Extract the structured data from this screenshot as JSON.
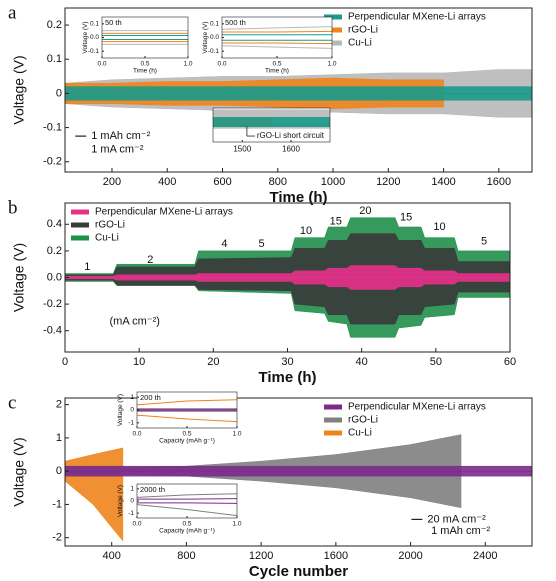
{
  "chart_data": [
    {
      "type": "band",
      "label": "a",
      "xlabel": "Time (h)",
      "ylabel": "Voltage (V)",
      "xlim": [
        30,
        1720
      ],
      "ylim": [
        -0.23,
        0.25
      ],
      "xticks": [
        200,
        400,
        600,
        800,
        1000,
        1200,
        1400,
        1600
      ],
      "yticks": [
        0.2,
        0.1,
        0,
        -0.1,
        -0.2
      ],
      "legend": "upper right",
      "x": [
        30,
        200,
        400,
        600,
        800,
        1000,
        1200,
        1400,
        1600,
        1720
      ],
      "series": [
        {
          "name": "Perpendicular MXene-Li arrays",
          "color": "#1a9a8a",
          "values": [
            0.02,
            0.02,
            0.02,
            0.02,
            0.02,
            0.02,
            0.02,
            0.02,
            0.02,
            0.02
          ],
          "lower": [
            -0.02,
            -0.02,
            -0.02,
            -0.02,
            -0.02,
            -0.02,
            -0.02,
            -0.02,
            -0.02,
            -0.02
          ]
        },
        {
          "name": "rGO-Li",
          "color": "#f0841c",
          "values": [
            0.03,
            0.03,
            0.035,
            0.035,
            0.04,
            0.045,
            0.04,
            0.04,
            null,
            null
          ],
          "lower": [
            -0.03,
            -0.03,
            -0.035,
            -0.035,
            -0.04,
            -0.045,
            -0.04,
            -0.04,
            null,
            null
          ]
        },
        {
          "name": "Cu-Li",
          "color": "#b8b8b8",
          "values": [
            0.03,
            0.04,
            0.045,
            0.05,
            0.05,
            0.055,
            0.06,
            0.06,
            0.07,
            0.07
          ],
          "lower": [
            -0.03,
            -0.04,
            -0.045,
            -0.05,
            -0.05,
            -0.055,
            -0.06,
            -0.06,
            -0.07,
            -0.07
          ]
        }
      ],
      "annotations": [
        {
          "text": "1 mAh cm⁻²",
          "x": 125,
          "y": -0.125
        },
        {
          "text": "1 mA cm⁻²",
          "x": 125,
          "y": -0.165
        }
      ]
    },
    {
      "type": "line",
      "title": "50 th",
      "xlabel": "Time (h)",
      "ylabel": "Voltage (V)",
      "xlim": [
        0,
        1
      ],
      "ylim": [
        -0.15,
        0.15
      ],
      "xticks": [
        {
          "value": 0,
          "label": "0.0"
        },
        0.5,
        {
          "value": 1,
          "label": "1.0"
        }
      ],
      "yticks": [
        0.1,
        {
          "value": 0,
          "label": "0.0"
        },
        -0.1
      ],
      "x": [
        0,
        0.5,
        1
      ],
      "series": [
        {
          "color": "#b8b8b8",
          "values": [
            0.05,
            0.05,
            0.05
          ]
        },
        {
          "color": "#b8b8b8",
          "values": [
            -0.05,
            -0.05,
            -0.05
          ]
        },
        {
          "color": "#f0841c",
          "values": [
            0.03,
            0.03,
            0.03
          ]
        },
        {
          "color": "#f0841c",
          "values": [
            -0.03,
            -0.03,
            -0.03
          ]
        },
        {
          "color": "#1a9a8a",
          "values": [
            0.015,
            0.015,
            0.015
          ]
        },
        {
          "color": "#1a9a8a",
          "values": [
            -0.015,
            -0.015,
            -0.015
          ]
        }
      ]
    },
    {
      "type": "line",
      "title": "500 th",
      "xlabel": "Time (h)",
      "ylabel": "Voltage (V)",
      "xlim": [
        0,
        1
      ],
      "ylim": [
        -0.15,
        0.15
      ],
      "xticks": [
        {
          "value": 0,
          "label": "0.0"
        },
        0.5,
        {
          "value": 1,
          "label": "1.0"
        }
      ],
      "yticks": [
        0.1,
        {
          "value": 0,
          "label": "0.0"
        },
        -0.1
      ],
      "x": [
        0,
        0.5,
        1
      ],
      "series": [
        {
          "color": "#b8b8b8",
          "values": [
            0.06,
            0.07,
            0.08
          ]
        },
        {
          "color": "#b8b8b8",
          "values": [
            -0.06,
            -0.07,
            -0.08
          ]
        },
        {
          "color": "#f0841c",
          "values": [
            0.04,
            0.04,
            0.045
          ]
        },
        {
          "color": "#f0841c",
          "values": [
            -0.04,
            -0.04,
            -0.045
          ]
        },
        {
          "color": "#1a9a8a",
          "values": [
            0.02,
            0.02,
            0.02
          ]
        },
        {
          "color": "#1a9a8a",
          "values": [
            -0.02,
            -0.02,
            -0.02
          ]
        }
      ]
    },
    {
      "type": "band",
      "xlim": [
        1440,
        1680
      ],
      "ylim": [
        -0.1,
        0.1
      ],
      "xticks": [
        1500,
        1600
      ],
      "yticks": [],
      "x": [
        1440,
        1500,
        1560,
        1600,
        1680
      ],
      "series": [
        {
          "color": "#1a9a8a",
          "values": [
            0.045,
            0.045,
            0.045,
            0.045,
            0.045
          ],
          "lower": [
            -0.01,
            -0.01,
            -0.01,
            -0.01,
            -0.01
          ]
        },
        {
          "color": "#f0841c",
          "values": [
            0.035,
            0.035,
            0.035,
            null,
            null
          ],
          "lower": [
            -0.01,
            -0.01,
            -0.01,
            null,
            null
          ]
        },
        {
          "color": "#b8b8b8",
          "values": [
            0.09,
            0.09,
            0.09,
            0.09,
            0.09
          ],
          "lower": [
            -0.02,
            -0.02,
            -0.02,
            -0.02,
            -0.02
          ]
        }
      ],
      "annotations": [
        {
          "text": "rGO-Li short circuit",
          "x": 1530,
          "y": -0.065
        }
      ]
    },
    {
      "type": "band",
      "label": "b",
      "xlabel": "Time (h)",
      "ylabel": "Voltage (V)",
      "xlim": [
        0,
        60
      ],
      "ylim": [
        -0.56,
        0.56
      ],
      "xticks": [
        0,
        10,
        20,
        30,
        40,
        50,
        60
      ],
      "yticks": [
        0.4,
        0.2,
        {
          "value": 0,
          "label": "0.0"
        },
        -0.2,
        -0.4
      ],
      "legend": "upper left",
      "x": [
        0,
        6.5,
        7,
        17.5,
        18,
        30.5,
        31,
        35,
        35.5,
        38,
        38.5,
        44.5,
        45,
        48,
        48.5,
        52.5,
        53,
        60
      ],
      "series": [
        {
          "name": "Perpendicular MXene-Li arrays",
          "color": "#e8308a",
          "values": [
            0.01,
            0.01,
            0.02,
            0.02,
            0.03,
            0.03,
            0.05,
            0.05,
            0.07,
            0.07,
            0.09,
            0.09,
            0.07,
            0.07,
            0.05,
            0.05,
            0.03,
            0.03
          ],
          "lower": [
            -0.01,
            -0.01,
            -0.02,
            -0.02,
            -0.03,
            -0.03,
            -0.05,
            -0.05,
            -0.07,
            -0.07,
            -0.09,
            -0.09,
            -0.07,
            -0.07,
            -0.05,
            -0.05,
            -0.03,
            -0.03
          ]
        },
        {
          "name": "rGO-Li",
          "color": "#3a3a3a",
          "values": [
            0.02,
            0.02,
            0.08,
            0.08,
            0.14,
            0.15,
            0.22,
            0.22,
            0.28,
            0.28,
            0.33,
            0.33,
            0.28,
            0.28,
            0.22,
            0.22,
            0.12,
            0.12
          ],
          "lower": [
            -0.02,
            -0.02,
            -0.06,
            -0.06,
            -0.09,
            -0.1,
            -0.2,
            -0.22,
            -0.28,
            -0.28,
            -0.35,
            -0.35,
            -0.28,
            -0.28,
            -0.22,
            -0.2,
            -0.11,
            -0.11
          ]
        },
        {
          "name": "Cu-Li",
          "color": "#1f8f4a",
          "values": [
            0.03,
            0.03,
            0.1,
            0.1,
            0.2,
            0.2,
            0.3,
            0.3,
            0.38,
            0.38,
            0.45,
            0.45,
            0.38,
            0.38,
            0.3,
            0.3,
            0.2,
            0.2
          ],
          "lower": [
            -0.03,
            -0.03,
            -0.06,
            -0.06,
            -0.1,
            -0.12,
            -0.25,
            -0.27,
            -0.33,
            -0.35,
            -0.45,
            -0.45,
            -0.38,
            -0.36,
            -0.3,
            -0.28,
            -0.15,
            -0.15
          ]
        }
      ],
      "annotations": [
        {
          "text": "1",
          "x": 3,
          "y": 0.08
        },
        {
          "text": "2",
          "x": 11.5,
          "y": 0.13
        },
        {
          "text": "4",
          "x": 21.5,
          "y": 0.25
        },
        {
          "text": "5",
          "x": 26.5,
          "y": 0.25
        },
        {
          "text": "10",
          "x": 32.5,
          "y": 0.35
        },
        {
          "text": "15",
          "x": 36.5,
          "y": 0.42
        },
        {
          "text": "20",
          "x": 40.5,
          "y": 0.5
        },
        {
          "text": "15",
          "x": 46,
          "y": 0.45
        },
        {
          "text": "10",
          "x": 50.5,
          "y": 0.38
        },
        {
          "text": "5",
          "x": 56.5,
          "y": 0.27
        },
        {
          "text": "(mA cm⁻²)",
          "x": 6,
          "y": -0.33
        }
      ]
    },
    {
      "type": "band",
      "label": "c",
      "xlabel": "Cycle number",
      "ylabel": "Voltage (V)",
      "xlim": [
        150,
        2650
      ],
      "ylim": [
        -2.25,
        2.2
      ],
      "xticks": [
        400,
        800,
        1200,
        1600,
        2000,
        2400
      ],
      "yticks": [
        2,
        1,
        0,
        -1,
        -2
      ],
      "legend": "upper right",
      "x": [
        150,
        300,
        460,
        800,
        1200,
        1600,
        2000,
        2270,
        2650
      ],
      "series": [
        {
          "name": "Perpendicular MXene-Li arrays",
          "color": "#7b2a8a",
          "values": [
            0.15,
            0.15,
            0.15,
            0.15,
            0.15,
            0.15,
            0.15,
            0.15,
            0.15
          ],
          "lower": [
            -0.15,
            -0.15,
            -0.15,
            -0.15,
            -0.15,
            -0.15,
            -0.15,
            -0.15,
            -0.15
          ]
        },
        {
          "name": "rGO-Li",
          "color": "#808080",
          "values": [
            0.1,
            0.1,
            0.1,
            0.15,
            0.3,
            0.5,
            0.8,
            1.1,
            null
          ],
          "lower": [
            -0.1,
            -0.1,
            -0.1,
            -0.15,
            -0.3,
            -0.5,
            -0.8,
            -1.1,
            null
          ]
        },
        {
          "name": "Cu-Li",
          "color": "#f0841c",
          "values": [
            0.3,
            0.5,
            0.7,
            null,
            null,
            null,
            null,
            null,
            null
          ],
          "lower": [
            -0.3,
            -1.0,
            -2.1,
            null,
            null,
            null,
            null,
            null,
            null
          ]
        }
      ],
      "annotations": [
        {
          "text": "20 mA cm⁻²",
          "x": 2090,
          "y": -1.45
        },
        {
          "text": "1 mAh cm⁻²",
          "x": 2110,
          "y": -1.8
        }
      ]
    },
    {
      "type": "line",
      "title": "200 th",
      "xlabel": "Capacity (mAh g⁻¹)",
      "ylabel": "Voltage (V)",
      "xlim": [
        0,
        1
      ],
      "ylim": [
        -1.4,
        1.4
      ],
      "xticks": [
        {
          "value": 0,
          "label": "0.0"
        },
        0.5,
        {
          "value": 1,
          "label": "1.0"
        }
      ],
      "yticks": [
        1,
        0,
        -1
      ],
      "x": [
        0,
        0.5,
        1
      ],
      "series": [
        {
          "color": "#f0841c",
          "values": [
            0.4,
            0.7,
            0.8
          ]
        },
        {
          "color": "#f0841c",
          "values": [
            -0.4,
            -0.7,
            -0.9
          ]
        },
        {
          "color": "#808080",
          "values": [
            0.1,
            0.1,
            0.1
          ]
        },
        {
          "color": "#808080",
          "values": [
            -0.1,
            -0.1,
            -0.1
          ]
        },
        {
          "color": "#7b2a8a",
          "values": [
            0.05,
            0.05,
            0.05
          ]
        },
        {
          "color": "#7b2a8a",
          "values": [
            -0.05,
            -0.05,
            -0.05
          ]
        }
      ]
    },
    {
      "type": "line",
      "title": "2000 th",
      "xlabel": "Capacity (mAh g⁻¹)",
      "ylabel": "Voltage (V)",
      "xlim": [
        0,
        1
      ],
      "ylim": [
        -1.4,
        1.4
      ],
      "xticks": [
        {
          "value": 0,
          "label": "0.0"
        },
        0.5,
        {
          "value": 1,
          "label": "1.0"
        }
      ],
      "yticks": [
        1,
        0,
        -1
      ],
      "x": [
        0,
        0.5,
        1
      ],
      "series": [
        {
          "color": "#808080",
          "values": [
            0.3,
            0.5,
            0.6
          ]
        },
        {
          "color": "#808080",
          "values": [
            -0.3,
            -0.7,
            -1.2
          ]
        },
        {
          "color": "#7b2a8a",
          "values": [
            0.15,
            0.15,
            0.2
          ]
        },
        {
          "color": "#7b2a8a",
          "values": [
            -0.15,
            -0.15,
            -0.2
          ]
        }
      ]
    }
  ]
}
